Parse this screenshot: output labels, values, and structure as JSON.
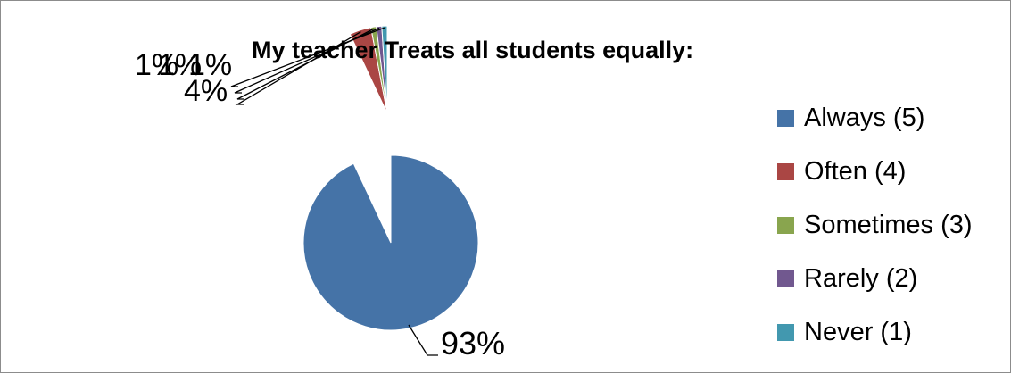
{
  "chart_data": {
    "type": "pie",
    "title": "My teacher Treats all students equally:",
    "categories": [
      "Always (5)",
      "Often (4)",
      "Sometimes (3)",
      "Rarely (2)",
      "Never (1)"
    ],
    "values": [
      93,
      4,
      1,
      1,
      1
    ],
    "data_labels": [
      "93%",
      "4%",
      "1%",
      "1%",
      "1%"
    ],
    "colors": [
      "#4573A7",
      "#AA4644",
      "#89A54E",
      "#71588F",
      "#4298AF"
    ],
    "legend_position": "right",
    "exploded_slices": [
      "Often (4)",
      "Sometimes (3)",
      "Rarely (2)",
      "Never (1)"
    ]
  }
}
